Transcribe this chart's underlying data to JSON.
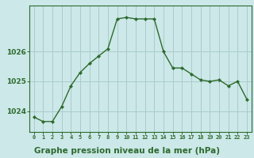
{
  "x": [
    0,
    1,
    2,
    3,
    4,
    5,
    6,
    7,
    8,
    9,
    10,
    11,
    12,
    13,
    14,
    15,
    16,
    17,
    18,
    19,
    20,
    21,
    22,
    23
  ],
  "y": [
    1023.8,
    1023.65,
    1023.65,
    1024.15,
    1024.85,
    1025.3,
    1025.6,
    1025.85,
    1026.1,
    1027.1,
    1027.15,
    1027.1,
    1027.1,
    1027.1,
    1026.0,
    1025.45,
    1025.45,
    1025.25,
    1025.05,
    1025.0,
    1025.05,
    1024.85,
    1025.0,
    1024.4
  ],
  "line_color": "#2d6a2d",
  "marker_color": "#2d6a2d",
  "bg_color": "#cce8e8",
  "grid_color": "#aacccc",
  "border_color": "#2d6a2d",
  "xlabel": "Graphe pression niveau de la mer (hPa)",
  "xlabel_color": "#2d6a2d",
  "tick_color": "#2d6a2d",
  "yticks": [
    1024,
    1025,
    1026
  ],
  "ylim": [
    1023.3,
    1027.55
  ],
  "xlim": [
    -0.5,
    23.5
  ]
}
